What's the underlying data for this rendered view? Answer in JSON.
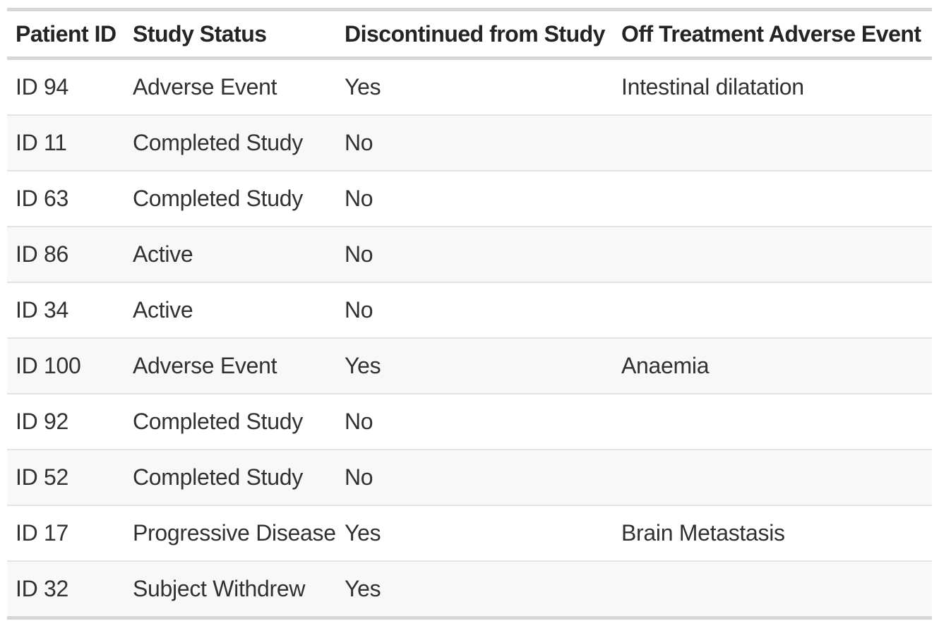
{
  "table": {
    "columns": [
      {
        "id": "patient-id",
        "label": "Patient ID"
      },
      {
        "id": "study-status",
        "label": "Study Status"
      },
      {
        "id": "discontinued-from-study",
        "label": "Discontinued from Study"
      },
      {
        "id": "off-treatment-adverse-event",
        "label": "Off Treatment Adverse Event"
      }
    ],
    "rows": [
      {
        "cells": [
          "ID 94",
          "Adverse Event",
          "Yes",
          "Intestinal dilatation"
        ]
      },
      {
        "cells": [
          "ID 11",
          "Completed Study",
          "No",
          ""
        ]
      },
      {
        "cells": [
          "ID 63",
          "Completed Study",
          "No",
          ""
        ]
      },
      {
        "cells": [
          "ID 86",
          "Active",
          "No",
          ""
        ]
      },
      {
        "cells": [
          "ID 34",
          "Active",
          "No",
          ""
        ]
      },
      {
        "cells": [
          "ID 100",
          "Adverse Event",
          "Yes",
          "Anaemia"
        ]
      },
      {
        "cells": [
          "ID 92",
          "Completed Study",
          "No",
          ""
        ]
      },
      {
        "cells": [
          "ID 52",
          "Completed Study",
          "No",
          ""
        ]
      },
      {
        "cells": [
          "ID 17",
          "Progressive Disease",
          "Yes",
          "Brain Metastasis"
        ]
      },
      {
        "cells": [
          "ID 32",
          "Subject Withdrew",
          "Yes",
          ""
        ]
      }
    ]
  },
  "colors": {
    "background": "#ffffff",
    "header_text": "#252423",
    "body_text": "#323130",
    "heavy_border": "#d6d6d6",
    "row_divider": "#e3e3e3",
    "row_band": "#f8f8f8"
  },
  "chart_data": {
    "type": "table",
    "title": "",
    "columns": [
      "Patient ID",
      "Study Status",
      "Discontinued from Study",
      "Off Treatment Adverse Event"
    ],
    "rows": [
      [
        "ID 94",
        "Adverse Event",
        "Yes",
        "Intestinal dilatation"
      ],
      [
        "ID 11",
        "Completed Study",
        "No",
        ""
      ],
      [
        "ID 63",
        "Completed Study",
        "No",
        ""
      ],
      [
        "ID 86",
        "Active",
        "No",
        ""
      ],
      [
        "ID 34",
        "Active",
        "No",
        ""
      ],
      [
        "ID 100",
        "Adverse Event",
        "Yes",
        "Anaemia"
      ],
      [
        "ID 92",
        "Completed Study",
        "No",
        ""
      ],
      [
        "ID 52",
        "Completed Study",
        "No",
        ""
      ],
      [
        "ID 17",
        "Progressive Disease",
        "Yes",
        "Brain Metastasis"
      ],
      [
        "ID 32",
        "Subject Withdrew",
        "Yes",
        ""
      ]
    ],
    "layout": {
      "row_banding": "even rows shaded",
      "gridlines": "horizontal only",
      "header_style": "bold"
    }
  }
}
